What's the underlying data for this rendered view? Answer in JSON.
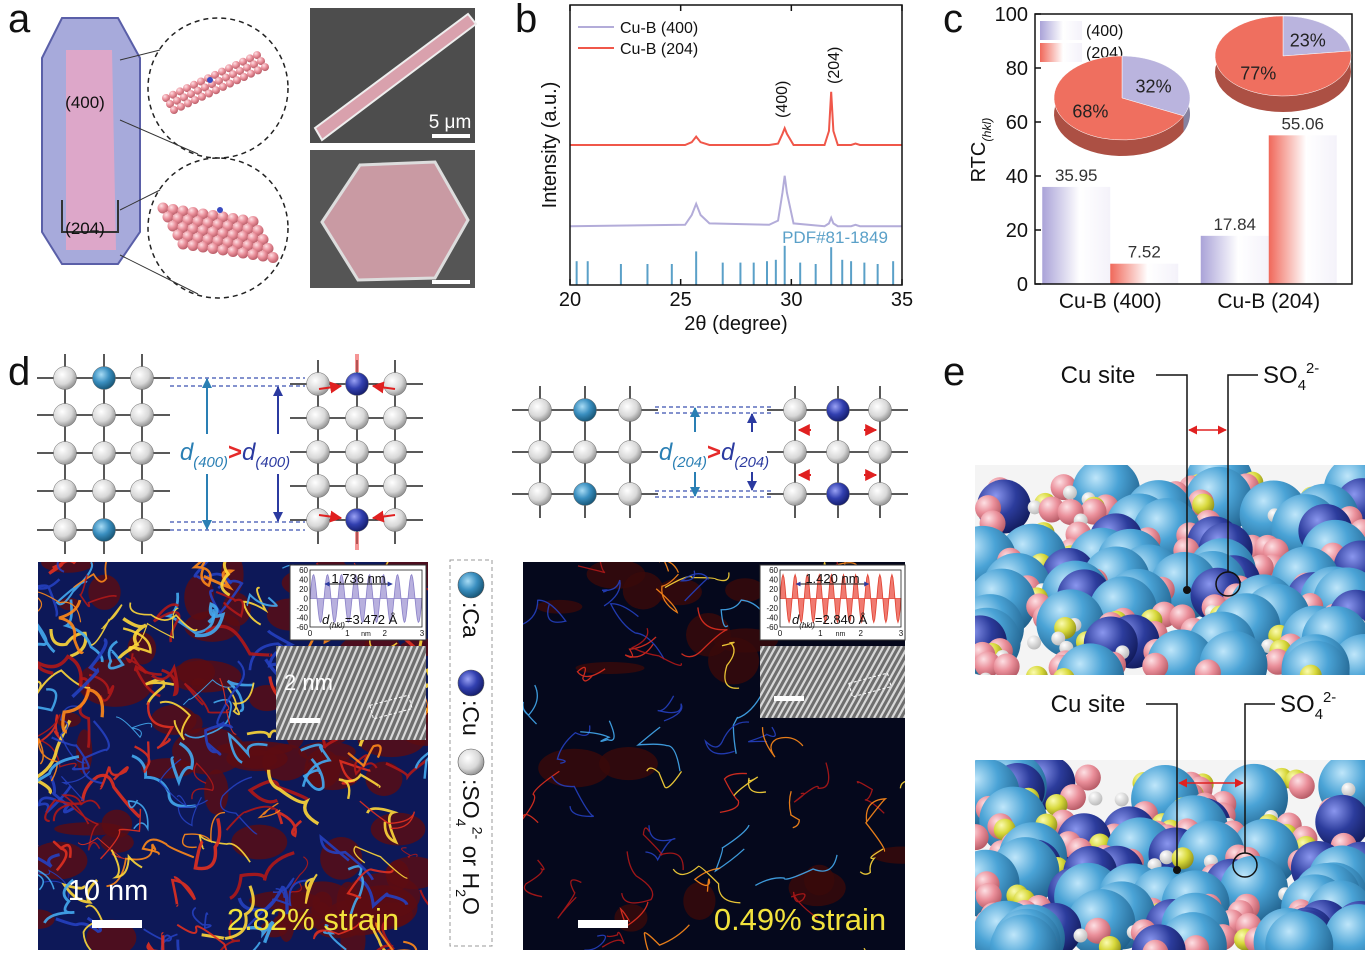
{
  "panel_labels": [
    "a",
    "b",
    "c",
    "d",
    "e"
  ],
  "panel_a": {
    "facets": [
      "(400)",
      "(204)"
    ],
    "scale_bar": "5 μm"
  },
  "chart_data": [
    {
      "type": "line",
      "xlabel": "2θ (degree)",
      "ylabel": "Intensity (a.u.)",
      "xlim": [
        20,
        35
      ],
      "xticks": [
        20,
        25,
        30,
        35
      ],
      "ylim": [
        0,
        100
      ],
      "x": [
        20,
        25.2,
        25.5,
        25.7,
        25.9,
        26.3,
        29.0,
        29.4,
        29.6,
        29.7,
        29.8,
        30.1,
        31.5,
        31.7,
        31.8,
        31.9,
        32.1,
        32.7,
        32.9,
        33.1,
        35
      ],
      "series": [
        {
          "name": "Cu-B (400)",
          "color": "#b3acd9",
          "values": [
            21,
            21.5,
            25,
            29,
            25,
            22,
            21.5,
            23,
            33,
            39,
            33,
            22,
            21,
            22,
            24,
            22,
            21,
            21,
            21.5,
            21,
            21
          ]
        },
        {
          "name": "Cu-B (204)",
          "color": "#f0574a",
          "values": [
            50,
            50,
            51,
            53,
            51,
            50,
            50,
            50.5,
            54,
            56,
            54,
            50,
            50,
            55,
            69,
            55,
            50,
            50,
            50.5,
            50,
            50
          ]
        }
      ],
      "reference": {
        "name": "PDF#81-1849",
        "color": "#5aa0c8",
        "x": [
          20.3,
          20.8,
          22.3,
          23.5,
          24.6,
          25.7,
          26.9,
          27.7,
          28.3,
          28.9,
          29.3,
          29.7,
          30.4,
          31.1,
          31.8,
          32.3,
          32.7,
          33.3,
          33.9,
          34.6
        ],
        "values": [
          8.5,
          8.5,
          7.5,
          7.5,
          7.5,
          12,
          8,
          8,
          8,
          8.5,
          9,
          14,
          8,
          7.5,
          13.5,
          9,
          8.5,
          8,
          7.5,
          8.5
        ]
      },
      "annotations": [
        "(400)",
        "(204)"
      ]
    },
    {
      "type": "bar",
      "ylabel": [
        {
          "text": "RTC"
        },
        {
          "text": "(hkl)",
          "style": "sub-italic"
        }
      ],
      "categories": [
        "Cu-B (400)",
        "Cu-B (204)"
      ],
      "ylim": [
        0,
        100
      ],
      "yticks": [
        0,
        20,
        40,
        60,
        80,
        100
      ],
      "series": [
        {
          "name": "(400)",
          "color": "#aaa3d8",
          "values": [
            35.95,
            17.84
          ]
        },
        {
          "name": "(204)",
          "color": "#f0685a",
          "values": [
            7.52,
            55.06
          ]
        }
      ]
    },
    {
      "type": "pie",
      "values": [
        32,
        68
      ],
      "value_labels": [
        "32%",
        "68%"
      ],
      "colors": [
        "#bab4de",
        "#ef6f5f"
      ]
    },
    {
      "type": "pie",
      "values": [
        23,
        77
      ],
      "value_labels": [
        "23%",
        "77%"
      ],
      "colors": [
        "#bab4de",
        "#ef6f5f"
      ]
    }
  ],
  "panel_d": {
    "relations": [
      [
        {
          "text": "d",
          "style": "italic-teal"
        },
        {
          "text": "(400)",
          "style": "sub-italic-teal"
        },
        {
          "text": ">",
          "style": "red-bold"
        },
        {
          "text": "d",
          "style": "italic-blue"
        },
        {
          "text": "(400)",
          "style": "sub-italic-blue"
        }
      ],
      [
        {
          "text": "d",
          "style": "italic-teal"
        },
        {
          "text": "(204)",
          "style": "sub-italic-teal"
        },
        {
          "text": ">",
          "style": "red-bold"
        },
        {
          "text": "d",
          "style": "italic-blue"
        },
        {
          "text": "(204)",
          "style": "sub-italic-blue"
        }
      ]
    ],
    "maps": [
      {
        "inset": {
          "period": "1.736 nm",
          "d_label": [
            {
              "text": "d",
              "style": "italic"
            },
            {
              "text": "(hkl)",
              "style": "sub-italic"
            },
            {
              "text": "=3.472 Å"
            }
          ],
          "yticks": [
            60,
            40,
            20,
            0,
            -20,
            -40,
            -60
          ],
          "xticks": [
            0,
            1,
            2,
            3
          ],
          "xunit": "nm",
          "lattice_scale": "2 nm"
        },
        "scale_bar": "10 nm",
        "strain": "2.82% strain"
      },
      {
        "inset": {
          "period": "1.420 nm",
          "d_label": [
            {
              "text": "d",
              "style": "italic"
            },
            {
              "text": "(hkl)",
              "style": "sub-italic"
            },
            {
              "text": "=2.840 Å"
            }
          ],
          "yticks": [
            60,
            40,
            20,
            0,
            -20,
            -40,
            -60
          ],
          "xticks": [
            0,
            1,
            2,
            3
          ],
          "xunit": "nm"
        },
        "strain": "0.49% strain"
      }
    ],
    "legend": [
      [
        {
          "text": ":Ca"
        }
      ],
      [
        {
          "text": ":Cu"
        }
      ],
      [
        {
          "text": ":SO"
        },
        {
          "text": "4",
          "style": "sub"
        },
        {
          "text": "2-",
          "style": "sup"
        },
        {
          "text": " or H"
        },
        {
          "text": "2",
          "style": "sub"
        },
        {
          "text": "O"
        }
      ]
    ]
  },
  "panel_e": {
    "top": [
      [
        {
          "text": "Cu site"
        }
      ],
      [
        {
          "text": "SO"
        },
        {
          "text": "4",
          "style": "sub"
        },
        {
          "text": "2-",
          "style": "sup"
        }
      ]
    ],
    "bottom": [
      [
        {
          "text": "Cu site"
        }
      ],
      [
        {
          "text": "SO"
        },
        {
          "text": "4",
          "style": "sub"
        },
        {
          "text": "2-",
          "style": "sup"
        }
      ]
    ]
  }
}
